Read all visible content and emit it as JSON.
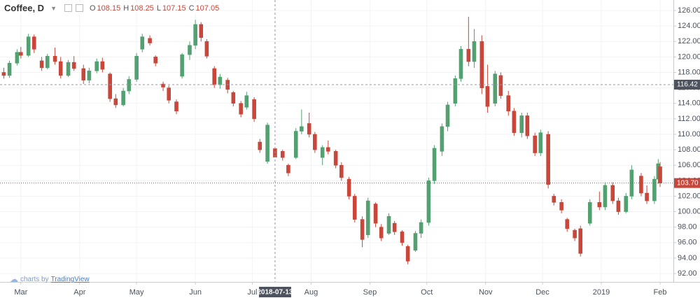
{
  "chart_data": {
    "type": "candlestick",
    "title": "Coffee, D",
    "ohlc_labels": [
      "O",
      "H",
      "L",
      "C"
    ],
    "x": [
      "2018-02-20",
      "2018-02-23",
      "2018-02-27",
      "2018-03-01",
      "2018-03-05",
      "2018-03-08",
      "2018-03-12",
      "2018-03-15",
      "2018-03-19",
      "2018-03-22",
      "2018-03-26",
      "2018-03-29",
      "2018-04-03",
      "2018-04-06",
      "2018-04-10",
      "2018-04-13",
      "2018-04-17",
      "2018-04-20",
      "2018-04-24",
      "2018-04-27",
      "2018-05-01",
      "2018-05-04",
      "2018-05-08",
      "2018-05-11",
      "2018-05-15",
      "2018-05-18",
      "2018-05-22",
      "2018-05-25",
      "2018-05-29",
      "2018-06-01",
      "2018-06-04",
      "2018-06-07",
      "2018-06-11",
      "2018-06-14",
      "2018-06-18",
      "2018-06-21",
      "2018-06-25",
      "2018-06-28",
      "2018-07-02",
      "2018-07-05",
      "2018-07-09",
      "2018-07-13",
      "2018-07-17",
      "2018-07-20",
      "2018-07-24",
      "2018-07-27",
      "2018-07-31",
      "2018-08-03",
      "2018-08-07",
      "2018-08-10",
      "2018-08-14",
      "2018-08-17",
      "2018-08-21",
      "2018-08-24",
      "2018-08-28",
      "2018-08-31",
      "2018-09-04",
      "2018-09-07",
      "2018-09-11",
      "2018-09-14",
      "2018-09-18",
      "2018-09-21",
      "2018-09-25",
      "2018-09-28",
      "2018-10-02",
      "2018-10-05",
      "2018-10-09",
      "2018-10-12",
      "2018-10-16",
      "2018-10-19",
      "2018-10-23",
      "2018-10-26",
      "2018-10-30",
      "2018-11-02",
      "2018-11-06",
      "2018-11-09",
      "2018-11-13",
      "2018-11-16",
      "2018-11-20",
      "2018-11-23",
      "2018-11-27",
      "2018-11-30",
      "2018-12-04",
      "2018-12-07",
      "2018-12-11",
      "2018-12-14",
      "2018-12-18",
      "2018-12-21",
      "2018-12-26",
      "2018-12-31",
      "2019-01-03",
      "2019-01-07",
      "2019-01-10",
      "2019-01-14",
      "2019-01-17",
      "2019-01-22",
      "2019-01-25",
      "2019-01-29",
      "2019-01-31",
      "2019-02-01"
    ],
    "open": [
      118.0,
      117.6,
      119.2,
      120.6,
      120.2,
      122.6,
      119.5,
      118.6,
      120.1,
      119.4,
      117.6,
      119.3,
      118.5,
      117.0,
      118.2,
      119.4,
      117.8,
      114.6,
      113.8,
      115.6,
      117.1,
      121.0,
      122.4,
      120.0,
      116.5,
      116.0,
      114.2,
      117.5,
      120.3,
      121.5,
      124.2,
      122.0,
      118.5,
      116.4,
      117.0,
      115.4,
      114.0,
      113.5,
      114.5,
      109.0,
      106.5,
      108.15,
      107.8,
      106.0,
      107.0,
      110.4,
      111.4,
      110.0,
      107.0,
      108.3,
      107.8,
      106.0,
      104.2,
      102.0,
      99.0,
      97.0,
      101.0,
      98.0,
      97.2,
      98.5,
      97.4,
      95.5,
      95.0,
      97.2,
      98.6,
      104.0,
      107.8,
      111.0,
      114.0,
      117.2,
      121.0,
      119.4,
      122.0,
      116.2,
      114.0,
      117.6,
      115.0,
      113.0,
      110.2,
      112.4,
      109.8,
      107.6,
      110.0,
      102.0,
      101.2,
      99.0,
      97.6,
      97.8,
      98.5,
      101.2,
      100.6,
      103.4,
      101.4,
      100.0,
      102.0,
      104.6,
      102.4,
      101.4,
      104.2,
      105.8
    ],
    "high": [
      118.6,
      119.5,
      121.0,
      121.3,
      123.0,
      122.9,
      120.0,
      120.4,
      121.2,
      120.0,
      119.6,
      120.1,
      119.0,
      118.6,
      119.8,
      119.9,
      118.0,
      115.2,
      116.0,
      117.5,
      120.5,
      123.0,
      122.8,
      120.2,
      116.8,
      116.3,
      114.5,
      120.5,
      122.0,
      124.8,
      124.5,
      122.3,
      118.8,
      117.8,
      117.3,
      115.6,
      114.3,
      115.5,
      114.8,
      109.4,
      111.5,
      108.25,
      108.0,
      106.2,
      110.8,
      113.2,
      112.8,
      110.3,
      108.6,
      109.2,
      108.0,
      106.4,
      104.5,
      102.3,
      99.4,
      101.8,
      101.2,
      98.4,
      99.8,
      98.8,
      97.6,
      95.7,
      97.5,
      99.0,
      104.4,
      108.6,
      111.4,
      114.2,
      117.6,
      121.4,
      125.2,
      123.6,
      122.8,
      119.0,
      118.2,
      118.0,
      115.6,
      113.4,
      112.8,
      112.8,
      110.2,
      110.6,
      110.4,
      102.3,
      101.6,
      99.2,
      97.8,
      98.2,
      101.6,
      102.6,
      103.8,
      103.8,
      101.8,
      102.4,
      106.0,
      105.0,
      103.4,
      104.6,
      106.8,
      106.4
    ],
    "low": [
      117.2,
      117.3,
      118.9,
      119.8,
      120.0,
      120.5,
      118.2,
      118.4,
      119.0,
      117.2,
      117.4,
      118.2,
      116.5,
      116.6,
      117.9,
      118.0,
      114.2,
      113.4,
      113.6,
      115.2,
      116.8,
      120.6,
      121.5,
      118.8,
      115.6,
      114.0,
      112.6,
      117.2,
      119.6,
      121.0,
      122.0,
      119.8,
      116.0,
      115.9,
      115.3,
      113.6,
      112.2,
      113.2,
      111.6,
      107.6,
      106.2,
      107.15,
      106.6,
      104.6,
      106.8,
      110.0,
      109.6,
      107.6,
      106.0,
      107.4,
      105.6,
      104.0,
      101.6,
      98.6,
      95.4,
      96.6,
      98.0,
      96.2,
      97.0,
      97.0,
      95.6,
      93.2,
      94.8,
      96.6,
      98.2,
      103.6,
      107.2,
      110.4,
      113.6,
      116.8,
      118.8,
      118.6,
      115.2,
      112.8,
      113.6,
      114.6,
      112.4,
      109.8,
      109.6,
      109.4,
      107.2,
      107.2,
      103.0,
      100.8,
      99.8,
      97.4,
      96.2,
      94.2,
      98.2,
      100.2,
      100.2,
      101.0,
      99.6,
      99.8,
      101.6,
      102.0,
      101.0,
      101.0,
      103.6,
      103.2
    ],
    "close": [
      117.6,
      119.2,
      120.6,
      120.2,
      122.6,
      121.0,
      118.6,
      120.1,
      119.4,
      117.6,
      119.3,
      118.5,
      117.0,
      118.2,
      119.4,
      118.4,
      114.6,
      113.8,
      115.6,
      117.1,
      120.1,
      122.6,
      121.8,
      119.2,
      116.1,
      114.4,
      113.0,
      120.3,
      121.5,
      124.2,
      122.5,
      120.1,
      116.4,
      117.4,
      115.8,
      114.0,
      112.6,
      115.0,
      112.0,
      108.0,
      111.2,
      107.05,
      107.0,
      105.0,
      110.4,
      111.0,
      110.0,
      108.0,
      108.3,
      107.8,
      106.0,
      104.4,
      102.0,
      99.0,
      96.4,
      101.4,
      98.5,
      96.6,
      99.4,
      97.4,
      96.0,
      93.6,
      97.2,
      98.6,
      104.0,
      108.2,
      111.0,
      113.8,
      117.2,
      121.0,
      119.4,
      122.0,
      116.0,
      113.6,
      117.8,
      115.0,
      113.0,
      110.2,
      112.4,
      109.8,
      107.6,
      110.2,
      103.5,
      101.2,
      100.2,
      97.8,
      96.6,
      94.6,
      101.2,
      100.6,
      103.4,
      101.4,
      100.0,
      102.0,
      105.4,
      102.4,
      101.4,
      104.2,
      106.2,
      103.7
    ],
    "up_color": "#53a071",
    "down_color": "#c8473a",
    "xlim": [
      "2018-02-18",
      "2019-02-08"
    ],
    "xticks": [
      {
        "value": "2018-03-01",
        "label": "Mar"
      },
      {
        "value": "2018-04-01",
        "label": "Apr"
      },
      {
        "value": "2018-05-01",
        "label": "May"
      },
      {
        "value": "2018-06-01",
        "label": "Jun"
      },
      {
        "value": "2018-07-01",
        "label": "Jul"
      },
      {
        "value": "2018-08-01",
        "label": "Aug"
      },
      {
        "value": "2018-09-01",
        "label": "Sep"
      },
      {
        "value": "2018-10-01",
        "label": "Oct"
      },
      {
        "value": "2018-11-01",
        "label": "Nov"
      },
      {
        "value": "2018-12-01",
        "label": "Dec"
      },
      {
        "value": "2019-01-01",
        "label": "2019"
      },
      {
        "value": "2019-02-01",
        "label": "Feb"
      }
    ],
    "ylim": [
      90.92,
      127.36
    ],
    "yticks": [
      {
        "value": 92,
        "label": "92.00"
      },
      {
        "value": 94,
        "label": "94.00"
      },
      {
        "value": 96,
        "label": "96.00"
      },
      {
        "value": 98,
        "label": "98.00"
      },
      {
        "value": 100,
        "label": "100.00"
      },
      {
        "value": 102,
        "label": "102.00"
      },
      {
        "value": 104,
        "label": "104.00"
      },
      {
        "value": 106,
        "label": "106.00"
      },
      {
        "value": 108,
        "label": "108.00"
      },
      {
        "value": 110,
        "label": "110.00"
      },
      {
        "value": 112,
        "label": "112.00"
      },
      {
        "value": 114,
        "label": "114.00"
      },
      {
        "value": 116,
        "label": "116.00"
      },
      {
        "value": 118,
        "label": "118.00"
      },
      {
        "value": 120,
        "label": "120.00"
      },
      {
        "value": 122,
        "label": "122.00"
      },
      {
        "value": 124,
        "label": "124.00"
      },
      {
        "value": 126,
        "label": "126.00"
      }
    ],
    "grid": true,
    "crosshair": {
      "x": "2018-07-13",
      "price": 116.42
    },
    "last_price": {
      "value": 103.7,
      "label": "103.70"
    },
    "watermark": {
      "prefix": "charts by",
      "brand": "TradingView"
    }
  }
}
